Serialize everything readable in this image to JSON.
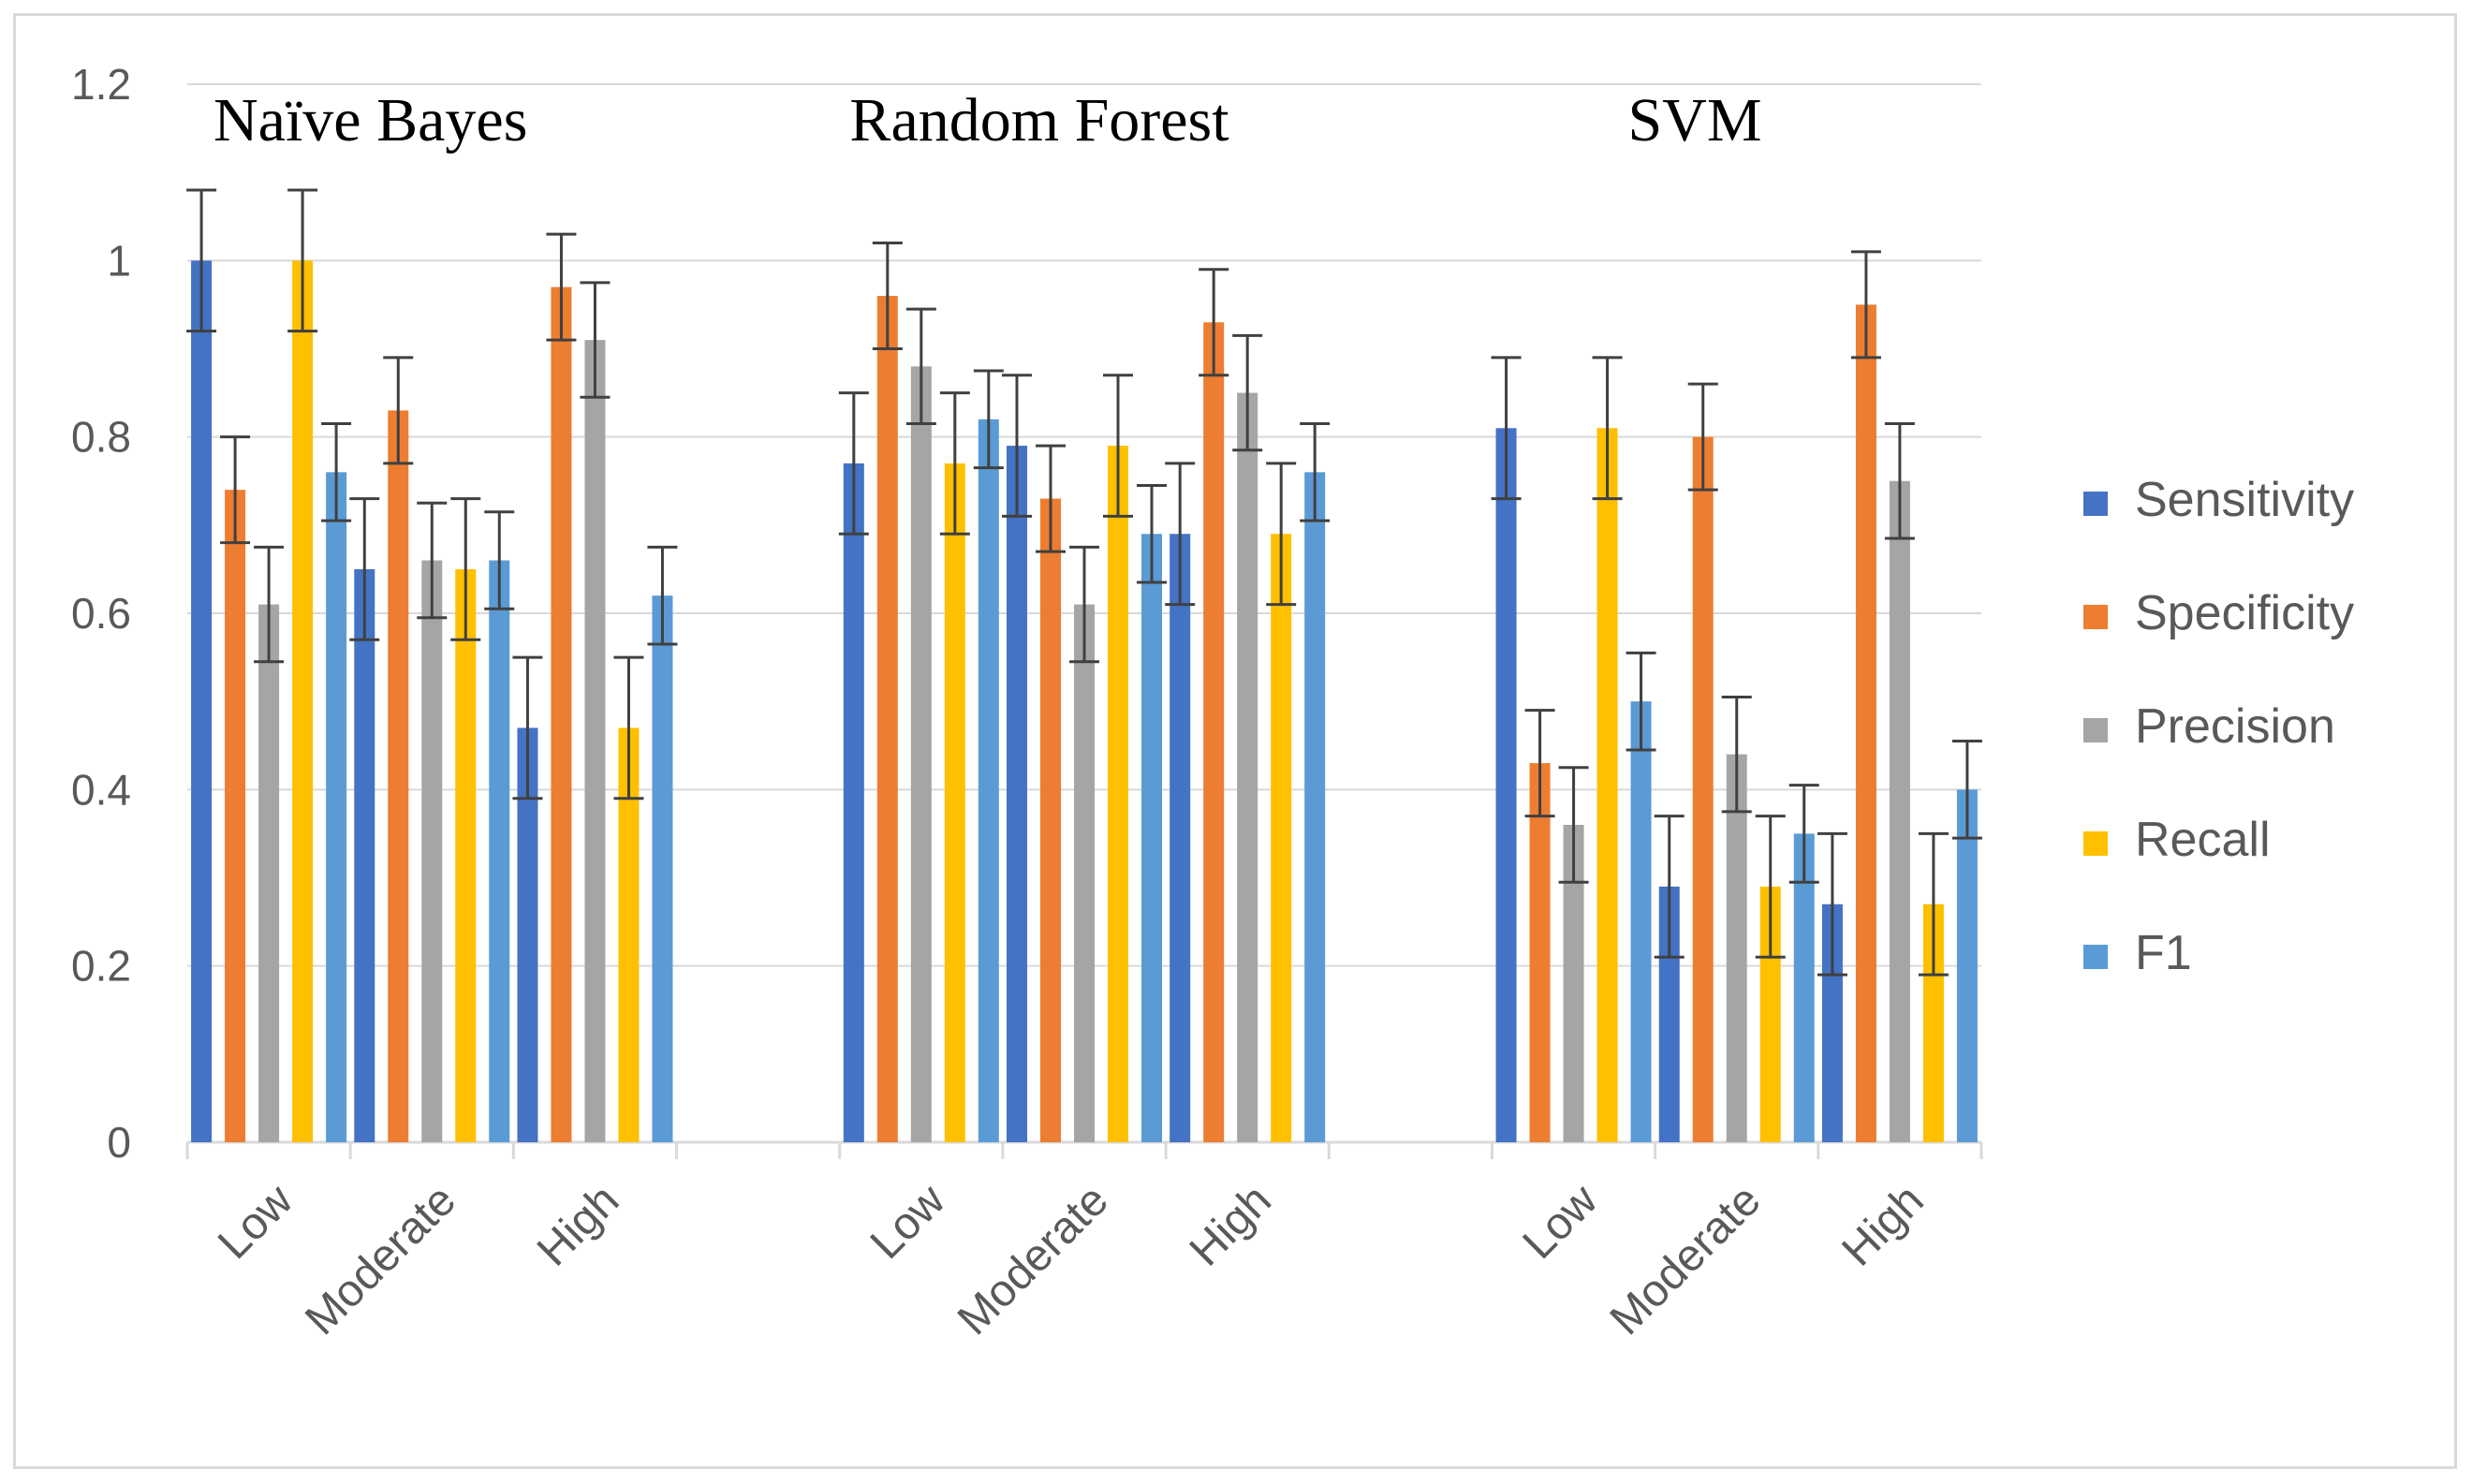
{
  "chart_data": {
    "type": "bar",
    "groups": [
      "Naïve Bayes",
      "Random Forest",
      "SVM"
    ],
    "categories": [
      "Low",
      "Moderate",
      "High"
    ],
    "series": [
      {
        "name": "Sensitivity",
        "color": "#4472C4",
        "values": [
          [
            1.0,
            0.65,
            0.47
          ],
          [
            0.77,
            0.79,
            0.69
          ],
          [
            0.81,
            0.29,
            0.27
          ]
        ],
        "errors": [
          [
            0.08,
            0.08,
            0.08
          ],
          [
            0.08,
            0.08,
            0.08
          ],
          [
            0.08,
            0.08,
            0.08
          ]
        ]
      },
      {
        "name": "Specificity",
        "color": "#ED7D31",
        "values": [
          [
            0.74,
            0.83,
            0.97
          ],
          [
            0.96,
            0.73,
            0.93
          ],
          [
            0.43,
            0.8,
            0.95
          ]
        ],
        "errors": [
          [
            0.06,
            0.06,
            0.06
          ],
          [
            0.06,
            0.06,
            0.06
          ],
          [
            0.06,
            0.06,
            0.06
          ]
        ]
      },
      {
        "name": "Precision",
        "color": "#A5A5A5",
        "values": [
          [
            0.61,
            0.66,
            0.91
          ],
          [
            0.88,
            0.61,
            0.85
          ],
          [
            0.36,
            0.44,
            0.75
          ]
        ],
        "errors": [
          [
            0.065,
            0.065,
            0.065
          ],
          [
            0.065,
            0.065,
            0.065
          ],
          [
            0.065,
            0.065,
            0.065
          ]
        ]
      },
      {
        "name": "Recall",
        "color": "#FFC000",
        "values": [
          [
            1.0,
            0.65,
            0.47
          ],
          [
            0.77,
            0.79,
            0.69
          ],
          [
            0.81,
            0.29,
            0.27
          ]
        ],
        "errors": [
          [
            0.08,
            0.08,
            0.08
          ],
          [
            0.08,
            0.08,
            0.08
          ],
          [
            0.08,
            0.08,
            0.08
          ]
        ]
      },
      {
        "name": "F1",
        "color": "#5B9BD5",
        "values": [
          [
            0.76,
            0.66,
            0.62
          ],
          [
            0.82,
            0.69,
            0.76
          ],
          [
            0.5,
            0.35,
            0.4
          ]
        ],
        "errors": [
          [
            0.055,
            0.055,
            0.055
          ],
          [
            0.055,
            0.055,
            0.055
          ],
          [
            0.055,
            0.055,
            0.055
          ]
        ]
      }
    ],
    "yticks": [
      "0",
      "0.2",
      "0.4",
      "0.6",
      "0.8",
      "1",
      "1.2"
    ],
    "ylim": [
      0,
      1.2
    ],
    "grid": true,
    "legend": "right"
  }
}
